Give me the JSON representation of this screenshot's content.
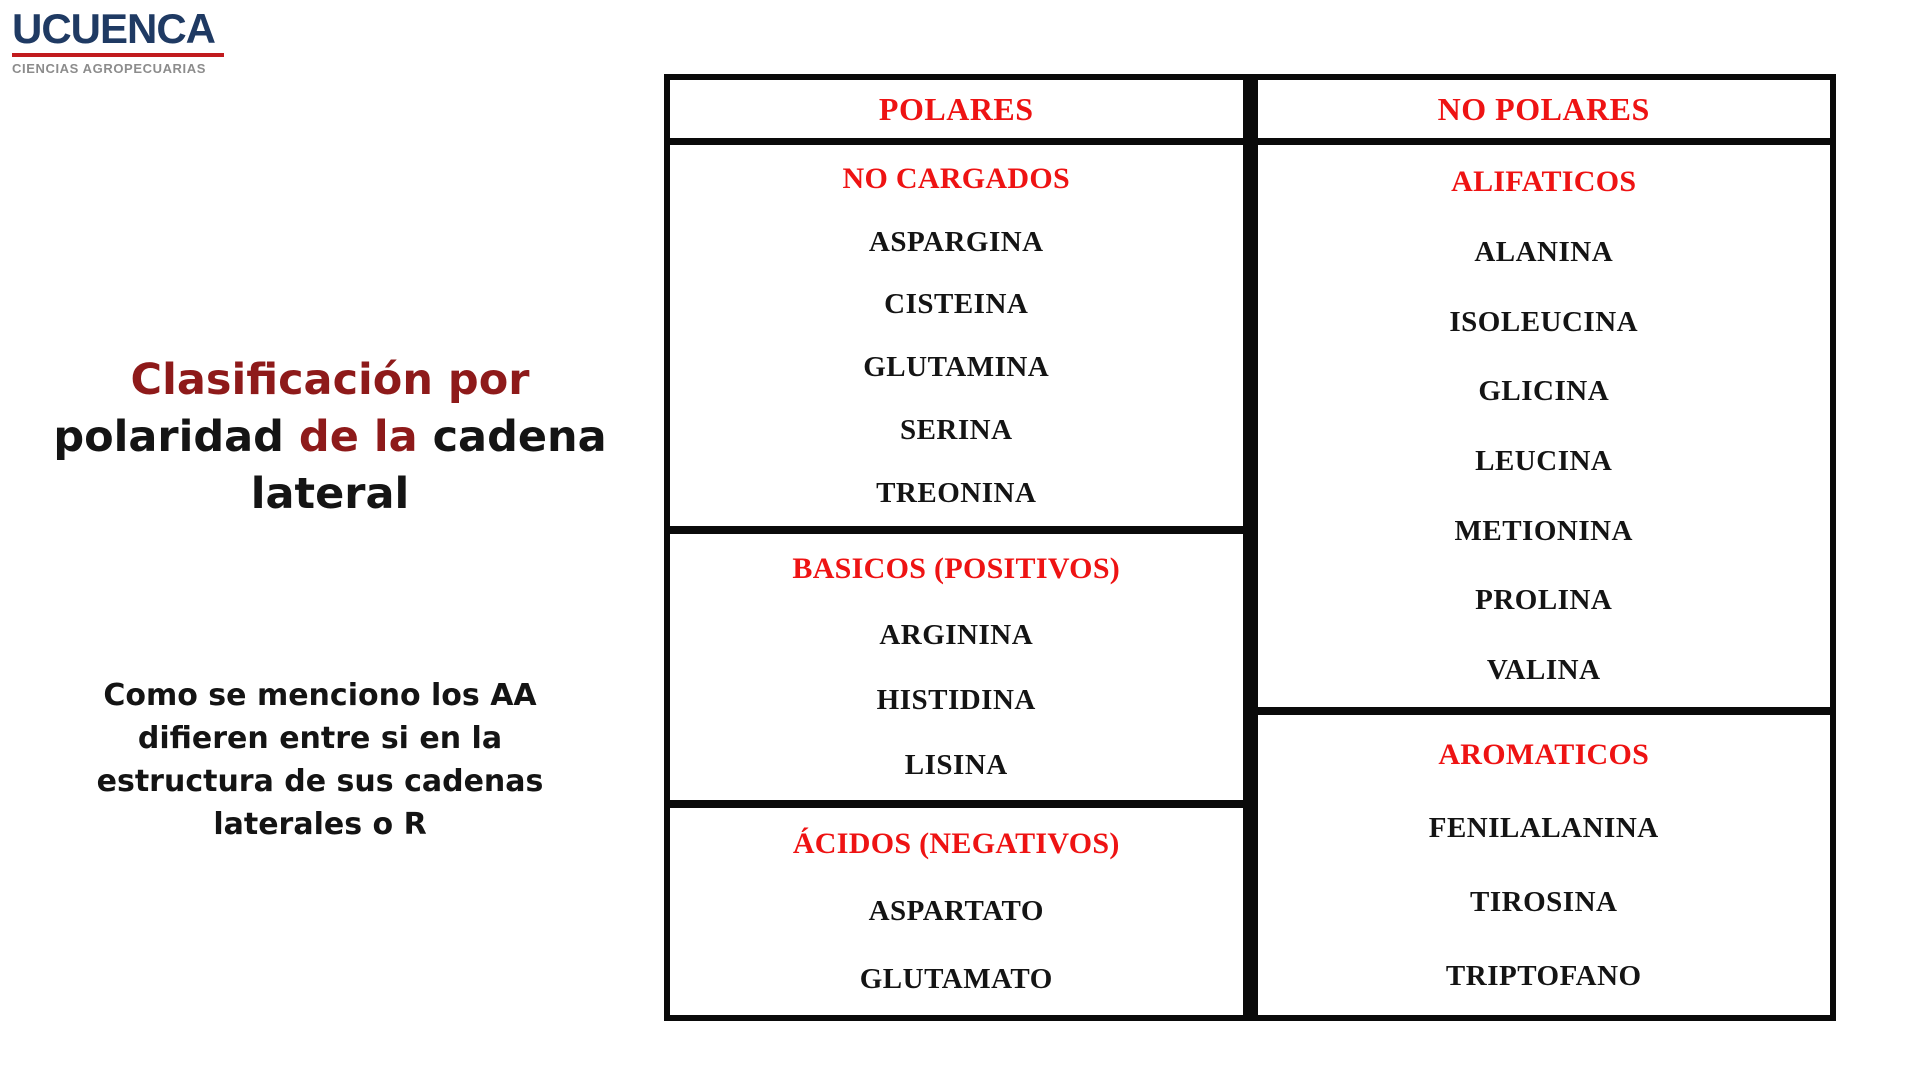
{
  "logo": {
    "wordmark": "UCUENCA",
    "subtitle": "CIENCIAS AGROPECUARIAS"
  },
  "left_panel": {
    "title_lines": [
      [
        {
          "text": "Clasificación por",
          "color": "accent"
        }
      ],
      [
        {
          "text": "polaridad ",
          "color": "ink"
        },
        {
          "text": "de la",
          "color": "accent"
        },
        {
          "text": " cadena",
          "color": "ink"
        }
      ],
      [
        {
          "text": "lateral",
          "color": "ink"
        }
      ]
    ],
    "paragraph_lines": [
      "Como se menciono los AA",
      "difieren entre si en la",
      "estructura de sus cadenas",
      "laterales o R"
    ]
  },
  "table": {
    "columns": [
      {
        "header": "POLARES",
        "sections": [
          {
            "title": "NO CARGADOS",
            "items": [
              "ASPARGINA",
              "CISTEINA",
              "GLUTAMINA",
              "SERINA",
              "TREONINA"
            ]
          },
          {
            "title": "BASICOS (POSITIVOS)",
            "items": [
              "ARGININA",
              "HISTIDINA",
              "LISINA"
            ]
          },
          {
            "title": "ÁCIDOS (NEGATIVOS)",
            "items": [
              "ASPARTATO",
              "GLUTAMATO"
            ]
          }
        ]
      },
      {
        "header": "NO POLARES",
        "sections": [
          {
            "title": "ALIFATICOS",
            "items": [
              "ALANINA",
              "ISOLEUCINA",
              "GLICINA",
              "LEUCINA",
              "METIONINA",
              "PROLINA",
              "VALINA"
            ]
          },
          {
            "title": "AROMATICOS",
            "items": [
              "FENILALANINA",
              "TIROSINA",
              "TRIPTOFANO"
            ]
          }
        ]
      }
    ]
  },
  "colors": {
    "table_heading_red": "#ee1313",
    "title_accent_dark_red": "#8e1a1a",
    "text_black": "#141414",
    "logo_navy": "#1f3a63",
    "logo_underline_red": "#c11b1e",
    "logo_subtitle_gray": "#8c8c8c"
  }
}
